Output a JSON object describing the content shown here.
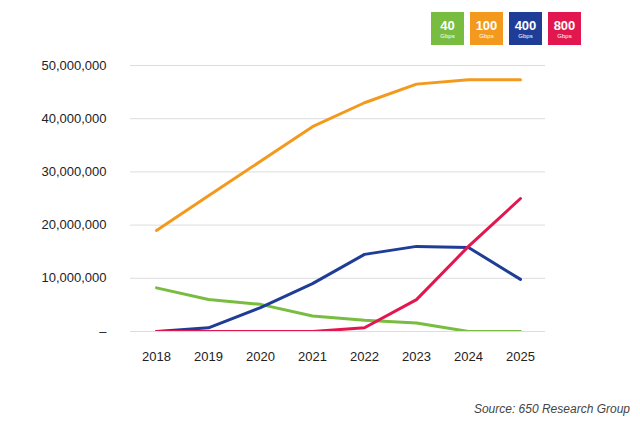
{
  "chart_data": {
    "type": "line",
    "caption": "Source: 650 Research Group",
    "categories": [
      "2018",
      "2019",
      "2020",
      "2021",
      "2022",
      "2023",
      "2024",
      "2025"
    ],
    "series": [
      {
        "name": "40 Gbps",
        "color": "#78bd3f",
        "values": [
          8200000,
          6000000,
          5100000,
          2900000,
          2100000,
          1600000,
          0,
          0
        ]
      },
      {
        "name": "100 Gbps",
        "color": "#f39a1e",
        "values": [
          19000000,
          25500000,
          32000000,
          38500000,
          43000000,
          46500000,
          47300000,
          47300000
        ]
      },
      {
        "name": "400 Gbps",
        "color": "#1f3d96",
        "values": [
          0,
          700000,
          4500000,
          9000000,
          14500000,
          16000000,
          15800000,
          9800000
        ]
      },
      {
        "name": "800 Gbps",
        "color": "#e3174f",
        "values": [
          0,
          0,
          0,
          0,
          700000,
          6000000,
          16000000,
          25000000
        ]
      }
    ],
    "ylim": [
      0,
      50000000
    ],
    "yticks": [
      {
        "value": 0,
        "label": "–"
      },
      {
        "value": 10000000,
        "label": "10,000,000"
      },
      {
        "value": 20000000,
        "label": "20,000,000"
      },
      {
        "value": 30000000,
        "label": "30,000,000"
      },
      {
        "value": 40000000,
        "label": "40,000,000"
      },
      {
        "value": 50000000,
        "label": "50,000,000"
      }
    ],
    "grid": true,
    "legend": "top-right"
  }
}
